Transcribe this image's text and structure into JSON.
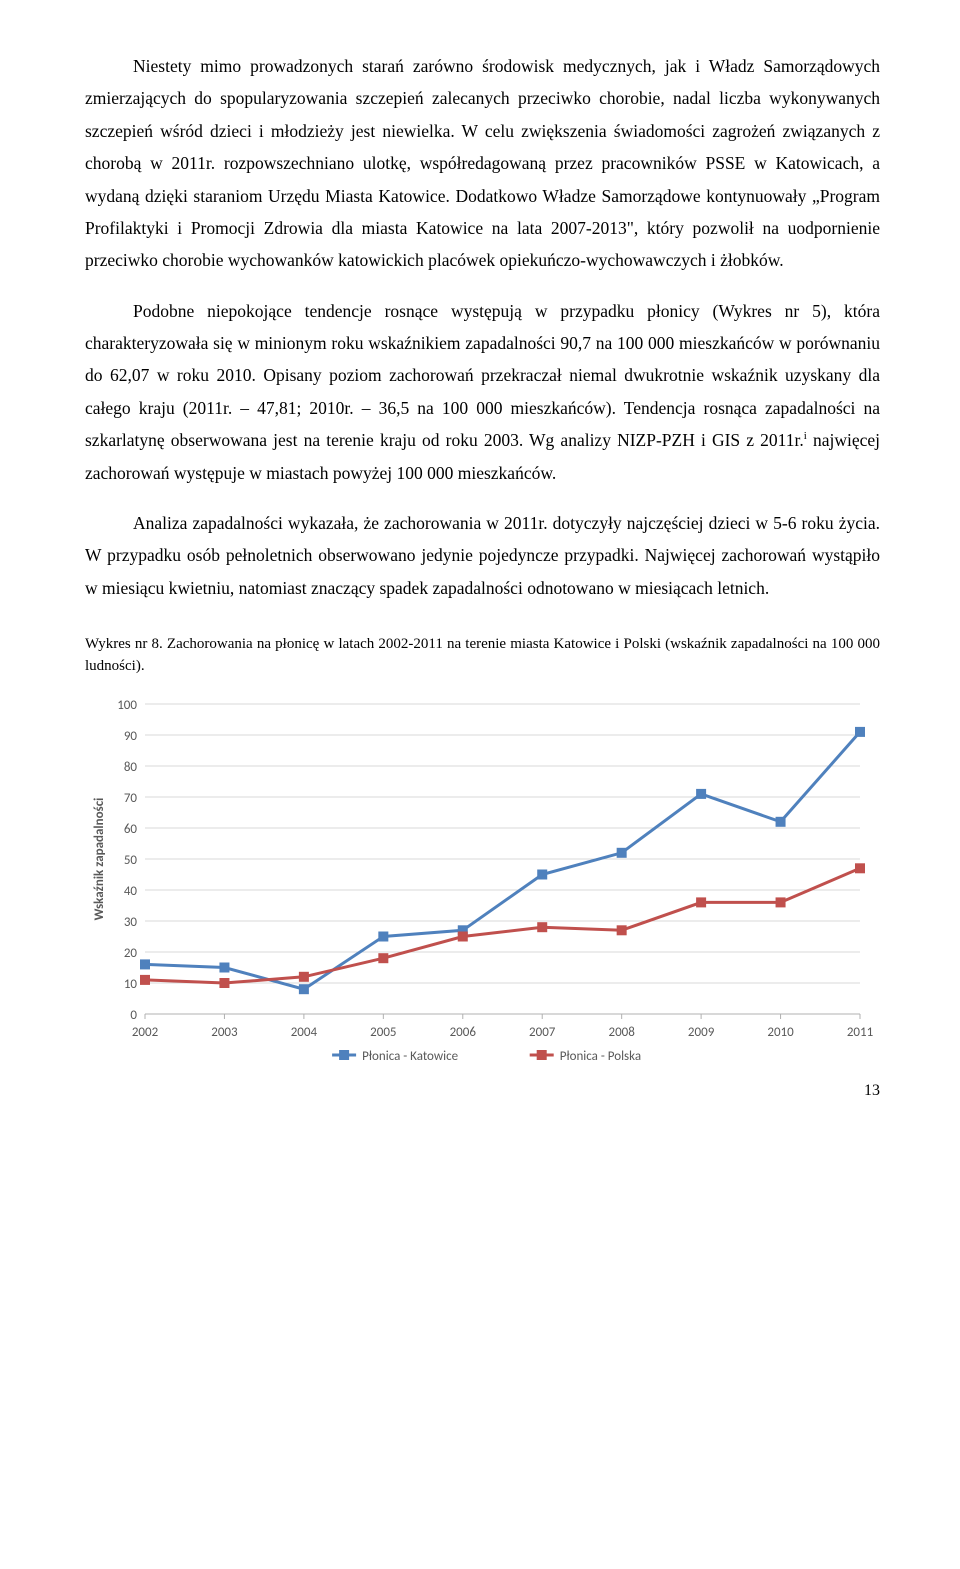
{
  "paragraphs": {
    "p1": "Niestety mimo prowadzonych starań zarówno środowisk medycznych, jak i Władz Samorządowych zmierzających do spopularyzowania szczepień zalecanych przeciwko chorobie, nadal liczba wykonywanych szczepień wśród dzieci i młodzieży jest niewielka. W celu zwiększenia świadomości zagrożeń związanych z chorobą w 2011r. rozpowszechniano ulotkę, współredagowaną przez pracowników PSSE w Katowicach, a wydaną dzięki staraniom Urzędu Miasta Katowice. Dodatkowo Władze Samorządowe kontynuowały „Program Profilaktyki i Promocji Zdrowia dla miasta Katowice na lata 2007-2013\", który pozwolił na uodpornienie przeciwko chorobie wychowanków katowickich placówek opiekuńczo-wychowawczych i żłobków.",
    "p2_a": "Podobne niepokojące tendencje rosnące występują w przypadku płonicy (Wykres nr 5), która charakteryzowała się w minionym roku wskaźnikiem zapadalności 90,7 na 100 000 mieszkańców w porównaniu do 62,07 w roku 2010. Opisany poziom zachorowań przekraczał niemal dwukrotnie wskaźnik uzyskany dla całego kraju (2011r. – 47,81; 2010r. – 36,5 na 100 000 mieszkańców). Tendencja rosnąca zapadalności na szkarlatynę obserwowana jest na terenie kraju od roku 2003. Wg analizy NIZP-PZH i GIS z 2011r.",
    "p2_sup": "i",
    "p2_b": " najwięcej zachorowań występuje w miastach powyżej 100 000 mieszkańców.",
    "p3": "Analiza zapadalności wykazała, że zachorowania w 2011r. dotyczyły najczęściej dzieci w 5-6 roku życia. W przypadku osób pełnoletnich obserwowano jedynie pojedyncze przypadki. Najwięcej zachorowań wystąpiło w miesiącu kwietniu, natomiast znaczący spadek zapadalności odnotowano w miesiącach letnich."
  },
  "caption": "Wykres nr 8. Zachorowania na płonicę w latach 2002-2011 na terenie miasta  Katowice i Polski (wskaźnik zapadalności na 100 000 ludności).",
  "page_number": "13",
  "chart": {
    "type": "line",
    "background_color": "#ffffff",
    "grid_color": "#d9d9d9",
    "axis_color": "#b0b0b0",
    "xlabels": [
      "2002",
      "2003",
      "2004",
      "2005",
      "2006",
      "2007",
      "2008",
      "2009",
      "2010",
      "2011"
    ],
    "ymin": 0,
    "ymax": 100,
    "ytick_step": 10,
    "ylabel": "Wskaźnik zapadalności",
    "ylabel_fontsize": 13,
    "ylabel_color": "#595959",
    "tick_fontsize": 13,
    "tick_color": "#595959",
    "series": [
      {
        "name": "Płonica - Katowice",
        "color": "#4f81bd",
        "marker": "square",
        "marker_size": 9,
        "line_width": 3,
        "values": [
          16,
          15,
          8,
          25,
          27,
          45,
          52,
          71,
          62,
          91
        ]
      },
      {
        "name": "Płonica - Polska",
        "color": "#c0504d",
        "marker": "square",
        "marker_size": 9,
        "line_width": 3,
        "values": [
          11,
          10,
          12,
          18,
          25,
          28,
          27,
          36,
          36,
          47
        ]
      }
    ],
    "legend_marker_size": 10,
    "legend_fontsize": 13,
    "legend_color": "#595959"
  }
}
